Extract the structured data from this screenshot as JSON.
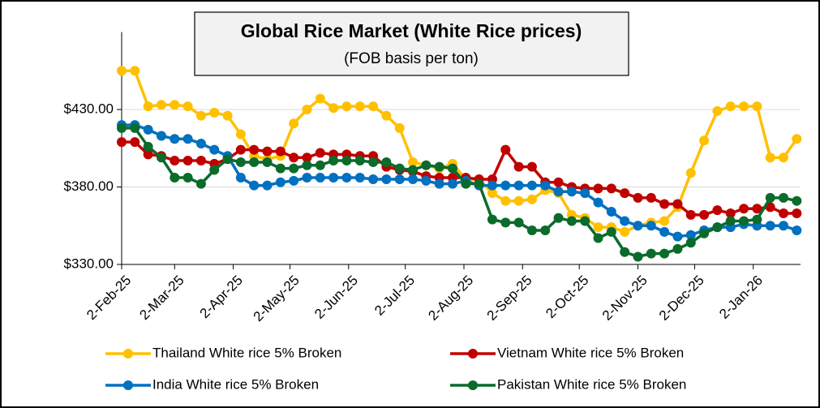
{
  "chart_data": {
    "type": "line",
    "title": "Global Rice Market (White Rice prices)",
    "subtitle": "(FOB basis per ton)",
    "x": [
      "2025-02-02",
      "2025-02-09",
      "2025-02-16",
      "2025-02-23",
      "2025-03-02",
      "2025-03-09",
      "2025-03-16",
      "2025-03-23",
      "2025-03-30",
      "2025-04-06",
      "2025-04-13",
      "2025-04-20",
      "2025-04-27",
      "2025-05-04",
      "2025-05-11",
      "2025-05-18",
      "2025-05-25",
      "2025-06-01",
      "2025-06-08",
      "2025-06-15",
      "2025-06-22",
      "2025-06-29",
      "2025-07-06",
      "2025-07-13",
      "2025-07-20",
      "2025-07-27",
      "2025-08-03",
      "2025-08-10",
      "2025-08-17",
      "2025-08-24",
      "2025-08-31",
      "2025-09-07",
      "2025-09-14",
      "2025-09-21",
      "2025-09-28",
      "2025-10-05",
      "2025-10-12",
      "2025-10-19",
      "2025-10-26",
      "2025-11-02",
      "2025-11-09",
      "2025-11-16",
      "2025-11-23",
      "2025-11-30",
      "2025-12-07",
      "2025-12-14",
      "2025-12-21",
      "2025-12-28",
      "2026-01-04",
      "2026-01-11",
      "2026-01-18",
      "2026-01-25"
    ],
    "xlim": [
      "2025-02-02",
      "2026-01-27"
    ],
    "xticks": [
      {
        "value": "2025-02-02",
        "label": "2-Feb-25"
      },
      {
        "value": "2025-03-02",
        "label": "2-Mar-25"
      },
      {
        "value": "2025-04-02",
        "label": "2-Apr-25"
      },
      {
        "value": "2025-05-02",
        "label": "2-May-25"
      },
      {
        "value": "2025-06-02",
        "label": "2-Jun-25"
      },
      {
        "value": "2025-07-02",
        "label": "2-Jul-25"
      },
      {
        "value": "2025-08-02",
        "label": "2-Aug-25"
      },
      {
        "value": "2025-09-02",
        "label": "2-Sep-25"
      },
      {
        "value": "2025-10-02",
        "label": "2-Oct-25"
      },
      {
        "value": "2025-11-02",
        "label": "2-Nov-25"
      },
      {
        "value": "2025-12-02",
        "label": "2-Dec-25"
      },
      {
        "value": "2026-01-02",
        "label": "2-Jan-26"
      }
    ],
    "ylim": [
      330,
      480
    ],
    "yticks": [
      {
        "value": 330,
        "label": "$330.00"
      },
      {
        "value": 380,
        "label": "$380.00"
      },
      {
        "value": 430,
        "label": "$430.00"
      }
    ],
    "grid": true,
    "legend": "bottom",
    "series": [
      {
        "name": "Thailand White rice 5% Broken",
        "color": "#ffc000",
        "values": [
          455,
          455,
          432,
          433,
          433,
          432,
          426,
          428,
          426,
          414,
          400,
          398,
          400,
          421,
          430,
          437,
          431,
          432,
          432,
          432,
          426,
          418,
          396,
          394,
          392,
          395,
          385,
          385,
          376,
          371,
          371,
          372,
          378,
          376,
          362,
          360,
          354,
          354,
          351,
          355,
          357,
          358,
          367,
          389,
          410,
          429,
          432,
          432,
          432,
          399,
          399,
          411
        ]
      },
      {
        "name": "Vietnam White rice 5% Broken",
        "color": "#c00000",
        "values": [
          409,
          409,
          401,
          400,
          397,
          397,
          397,
          395,
          398,
          404,
          404,
          403,
          403,
          399,
          399,
          402,
          401,
          401,
          400,
          400,
          393,
          391,
          390,
          387,
          386,
          386,
          386,
          385,
          385,
          404,
          393,
          393,
          383,
          383,
          380,
          379,
          379,
          379,
          376,
          373,
          373,
          369,
          369,
          362,
          362,
          365,
          363,
          366,
          366,
          367,
          363,
          363
        ]
      },
      {
        "name": "India White rice 5% Broken",
        "color": "#0070c0",
        "values": [
          420,
          420,
          417,
          413,
          411,
          411,
          408,
          404,
          400,
          386,
          381,
          381,
          383,
          384,
          386,
          386,
          386,
          386,
          386,
          385,
          385,
          385,
          385,
          384,
          382,
          382,
          384,
          381,
          381,
          381,
          381,
          381,
          381,
          377,
          377,
          376,
          370,
          364,
          358,
          355,
          355,
          351,
          348,
          349,
          352,
          354,
          354,
          356,
          355,
          355,
          355,
          352
        ]
      },
      {
        "name": "Pakistan White rice 5% Broken",
        "color": "#0b6b2b",
        "values": [
          418,
          418,
          406,
          399,
          386,
          386,
          382,
          391,
          398,
          396,
          396,
          396,
          392,
          392,
          394,
          394,
          397,
          397,
          397,
          396,
          396,
          392,
          391,
          394,
          393,
          392,
          382,
          382,
          359,
          357,
          357,
          352,
          352,
          360,
          358,
          358,
          347,
          351,
          338,
          335,
          337,
          337,
          340,
          344,
          350,
          354,
          358,
          358,
          359,
          373,
          373,
          371
        ]
      }
    ]
  }
}
